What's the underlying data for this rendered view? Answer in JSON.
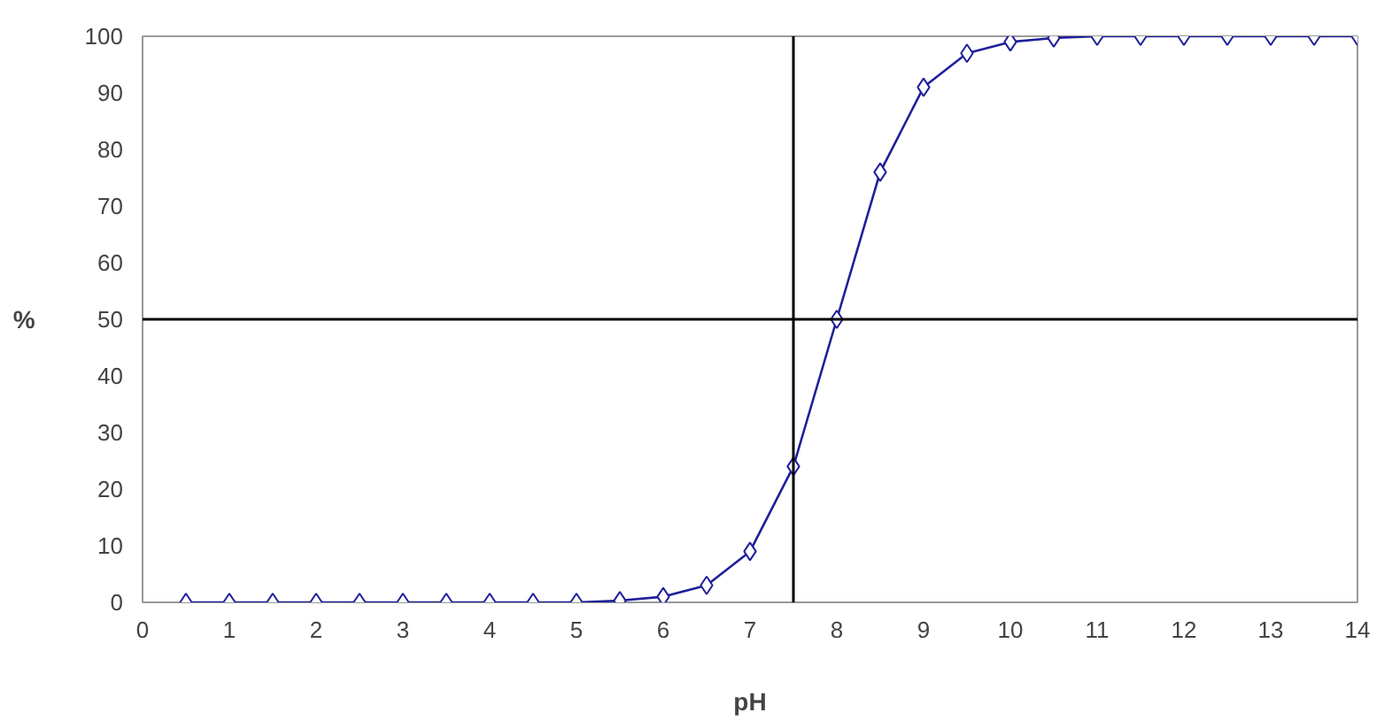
{
  "chart_data": {
    "type": "line",
    "xlabel": "pH",
    "ylabel": "%",
    "x": [
      0.5,
      1,
      1.5,
      2,
      2.5,
      3,
      3.5,
      4,
      4.5,
      5,
      5.5,
      6,
      6.5,
      7,
      7.5,
      8,
      8.5,
      9,
      9.5,
      10,
      10.5,
      11,
      11.5,
      12,
      12.5,
      13,
      13.5,
      14
    ],
    "series": [
      {
        "color": "#1f1f9a",
        "values": [
          0,
          0,
          0,
          0,
          0,
          0,
          0,
          0,
          0,
          0,
          0.3,
          1,
          3,
          9,
          24,
          50,
          76,
          91,
          97,
          99,
          99.7,
          100,
          100,
          100,
          100,
          100,
          100,
          100
        ]
      }
    ],
    "xlim": [
      0,
      14
    ],
    "ylim": [
      0,
      100
    ],
    "xticks": [
      0,
      1,
      2,
      3,
      4,
      5,
      6,
      7,
      8,
      9,
      10,
      11,
      12,
      13,
      14
    ],
    "yticks": [
      0,
      10,
      20,
      30,
      40,
      50,
      60,
      70,
      80,
      90,
      100
    ],
    "ref_lines": [
      {
        "axis": "x",
        "value": 7.5,
        "color": "#000000"
      },
      {
        "axis": "y",
        "value": 50,
        "color": "#000000"
      }
    ],
    "marker": "diamond",
    "line_style": "solid",
    "grid": false
  }
}
